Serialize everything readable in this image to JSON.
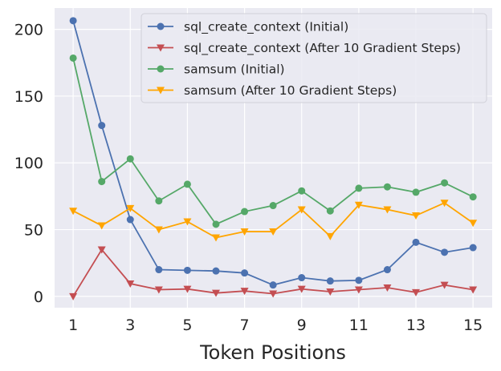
{
  "chart_data": {
    "type": "line",
    "title": "",
    "xlabel": "Token Positions",
    "ylabel": "",
    "x": [
      1,
      2,
      3,
      4,
      5,
      6,
      7,
      8,
      9,
      10,
      11,
      12,
      13,
      14,
      15
    ],
    "xticks": [
      1,
      3,
      5,
      7,
      9,
      11,
      13,
      15
    ],
    "yticks": [
      0,
      50,
      100,
      150,
      200
    ],
    "xlim": [
      0.35,
      15.67
    ],
    "ylim": [
      -8.5,
      216
    ],
    "grid": true,
    "legend_placement": "top-right",
    "series": [
      {
        "name": "sql_create_context (Initial)",
        "color": "#4c72b0",
        "marker": "circle",
        "values": [
          206.5,
          128,
          57.5,
          20,
          19.5,
          19,
          17.5,
          8.5,
          14,
          11.5,
          12,
          20,
          40.5,
          33,
          36.5
        ]
      },
      {
        "name": "sql_create_context (After 10 Gradient Steps)",
        "color": "#c44e52",
        "marker": "triangle-down",
        "values": [
          0,
          35,
          9.5,
          5,
          5.5,
          2.5,
          4,
          2,
          5.5,
          3.5,
          5,
          6.5,
          3,
          8.5,
          5
        ]
      },
      {
        "name": "samsum (Initial)",
        "color": "#55a868",
        "marker": "circle",
        "values": [
          178.5,
          86,
          103,
          71.5,
          84,
          54,
          63.5,
          68,
          79,
          64,
          81,
          82,
          78,
          85,
          74.5
        ]
      },
      {
        "name": "samsum (After 10 Gradient Steps)",
        "color": "#ffa500",
        "marker": "triangle-down",
        "values": [
          64,
          53,
          66,
          50,
          56,
          44,
          48.5,
          48.5,
          65,
          45,
          68.5,
          65,
          60.5,
          70,
          55
        ]
      }
    ]
  }
}
